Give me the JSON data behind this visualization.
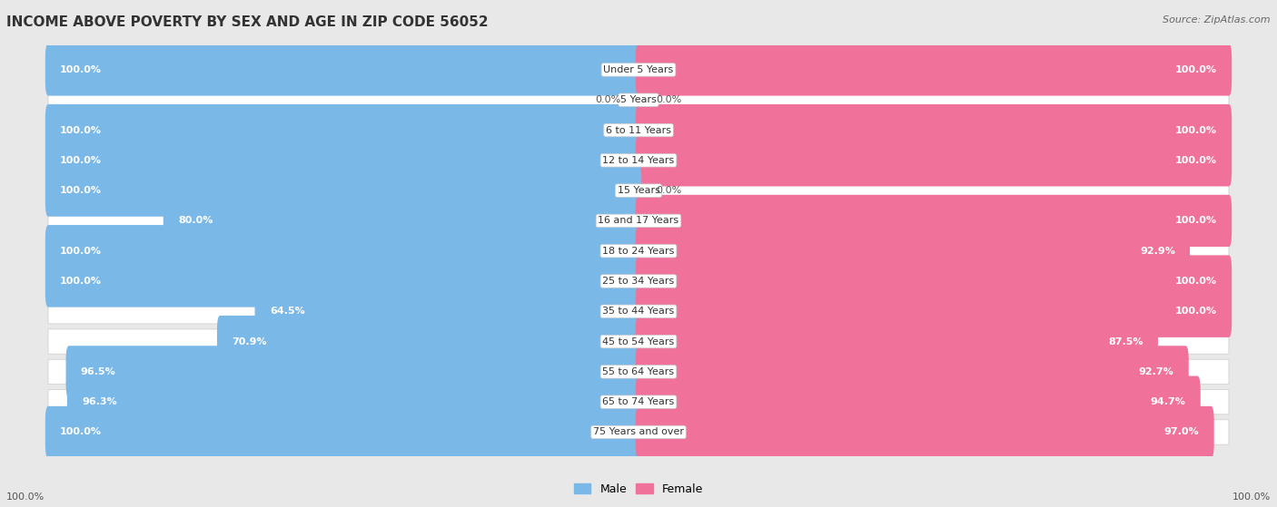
{
  "title": "INCOME ABOVE POVERTY BY SEX AND AGE IN ZIP CODE 56052",
  "source": "Source: ZipAtlas.com",
  "categories": [
    "Under 5 Years",
    "5 Years",
    "6 to 11 Years",
    "12 to 14 Years",
    "15 Years",
    "16 and 17 Years",
    "18 to 24 Years",
    "25 to 34 Years",
    "35 to 44 Years",
    "45 to 54 Years",
    "55 to 64 Years",
    "65 to 74 Years",
    "75 Years and over"
  ],
  "male_values": [
    100.0,
    0.0,
    100.0,
    100.0,
    100.0,
    80.0,
    100.0,
    100.0,
    64.5,
    70.9,
    96.5,
    96.3,
    100.0
  ],
  "female_values": [
    100.0,
    0.0,
    100.0,
    100.0,
    0.0,
    100.0,
    92.9,
    100.0,
    100.0,
    87.5,
    92.7,
    94.7,
    97.0
  ],
  "male_color": "#7ab8e8",
  "female_color": "#f0729a",
  "row_bg_color": "#f0f0f0",
  "fig_bg_color": "#e8e8e8",
  "title_fontsize": 11,
  "label_fontsize": 8,
  "val_fontsize": 8,
  "source_fontsize": 8
}
